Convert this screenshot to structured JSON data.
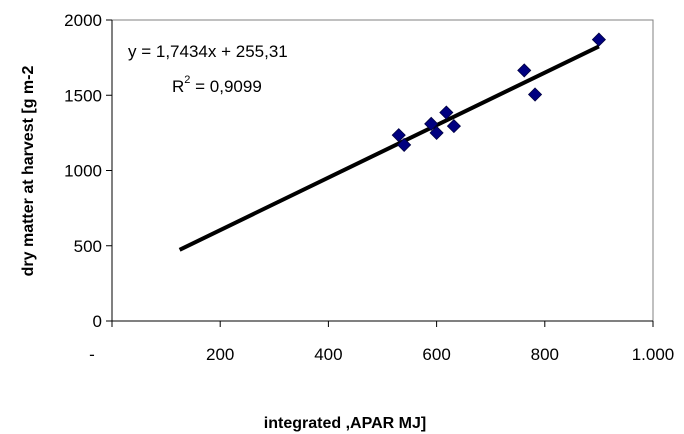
{
  "chart_data": {
    "type": "scatter",
    "xlabel": "integrated ,APAR  MJ]",
    "ylabel": "dry matter at harvest [g m-2",
    "xlim": [
      0,
      1000
    ],
    "ylim": [
      0,
      2000
    ],
    "x_ticks": [
      0,
      200,
      400,
      600,
      800,
      1000
    ],
    "x_tick_labels": [
      "-",
      "200",
      "400",
      "600",
      "800",
      "1.000"
    ],
    "y_ticks": [
      0,
      500,
      1000,
      1500,
      2000
    ],
    "y_tick_labels": [
      "0",
      "500",
      "1000",
      "1500",
      "2000"
    ],
    "marker_color": "#000080",
    "line_color": "#000000",
    "legend": "none",
    "grid": false,
    "points": [
      {
        "x": 530,
        "y": 1235
      },
      {
        "x": 540,
        "y": 1170
      },
      {
        "x": 590,
        "y": 1310
      },
      {
        "x": 600,
        "y": 1250
      },
      {
        "x": 618,
        "y": 1385
      },
      {
        "x": 632,
        "y": 1295
      },
      {
        "x": 762,
        "y": 1665
      },
      {
        "x": 782,
        "y": 1505
      },
      {
        "x": 900,
        "y": 1870
      }
    ],
    "trendline": {
      "slope": 1.7434,
      "intercept": 255.31,
      "x_start": 125,
      "x_end": 900,
      "equation_text": "y = 1,7434x + 255,31",
      "r2_prefix": "R",
      "r2_sup": "2",
      "r2_value_text": " = 0,9099"
    }
  }
}
